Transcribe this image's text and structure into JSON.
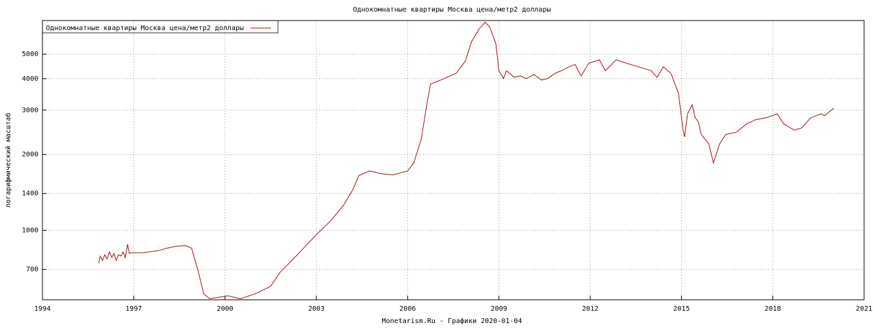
{
  "chart_data": {
    "type": "line",
    "title": "Однокомнатные квартиры Москва цена/метр2 доллары",
    "y_label": "логарифмический масштаб",
    "footer": "Monetarism.Ru - Графики  2020-01-04",
    "x": [
      1995.85,
      1995.9,
      1995.97,
      1996.05,
      1996.12,
      1996.2,
      1996.28,
      1996.35,
      1996.42,
      1996.5,
      1996.58,
      1996.65,
      1996.72,
      1996.8,
      1996.85,
      1996.9,
      1997.3,
      1997.8,
      1998.1,
      1998.4,
      1998.7,
      1998.9,
      1999.1,
      1999.3,
      1999.5,
      1999.9,
      2000.1,
      2000.5,
      2001.0,
      2001.5,
      2001.8,
      2002.2,
      2002.5,
      2003.0,
      2003.5,
      2003.9,
      2004.2,
      2004.4,
      2004.75,
      2005.1,
      2005.5,
      2006.0,
      2006.2,
      2006.45,
      2006.6,
      2006.75,
      2007.2,
      2007.6,
      2007.9,
      2008.1,
      2008.35,
      2008.55,
      2008.7,
      2008.9,
      2009.0,
      2009.15,
      2009.25,
      2009.5,
      2009.7,
      2009.9,
      2010.15,
      2010.4,
      2010.6,
      2010.85,
      2011.05,
      2011.3,
      2011.5,
      2011.7,
      2011.95,
      2012.3,
      2012.5,
      2012.85,
      2013.2,
      2013.6,
      2014.0,
      2014.2,
      2014.4,
      2014.65,
      2014.9,
      2015.05,
      2015.1,
      2015.2,
      2015.35,
      2015.45,
      2015.55,
      2015.65,
      2015.9,
      2016.05,
      2016.25,
      2016.45,
      2016.8,
      2017.15,
      2017.45,
      2017.8,
      2018.15,
      2018.35,
      2018.7,
      2018.95,
      2019.25,
      2019.6,
      2019.7,
      2020.0
    ],
    "series": [
      {
        "name": "Однокомнатные квартиры Москва цена/метр2 доллары",
        "color": "#a01010",
        "values": [
          740,
          790,
          760,
          800,
          770,
          820,
          780,
          810,
          760,
          800,
          790,
          820,
          780,
          880,
          810,
          815,
          815,
          830,
          850,
          865,
          870,
          850,
          700,
          560,
          535,
          545,
          550,
          535,
          560,
          600,
          680,
          760,
          830,
          960,
          1100,
          1260,
          1450,
          1650,
          1720,
          1680,
          1660,
          1720,
          1850,
          2300,
          3000,
          3800,
          4000,
          4200,
          4700,
          5600,
          6300,
          6700,
          6400,
          5500,
          4300,
          4000,
          4300,
          4050,
          4100,
          4000,
          4150,
          3950,
          4000,
          4200,
          4300,
          4450,
          4550,
          4100,
          4600,
          4750,
          4300,
          4750,
          4600,
          4450,
          4300,
          4050,
          4450,
          4200,
          3500,
          2500,
          2350,
          2900,
          3150,
          2800,
          2700,
          2400,
          2200,
          1850,
          2200,
          2400,
          2450,
          2650,
          2750,
          2800,
          2900,
          2650,
          2500,
          2550,
          2800,
          2900,
          2850,
          3050
        ]
      }
    ],
    "xlim": [
      1994,
      2021
    ],
    "xticks": [
      1994,
      1997,
      2000,
      2003,
      2006,
      2009,
      2012,
      2015,
      2018,
      2021
    ],
    "ylim": [
      530,
      6800
    ],
    "yticks": [
      700,
      1000,
      1400,
      2000,
      3000,
      4000,
      5000
    ],
    "ylog": true,
    "grid": true,
    "legend": "upper left"
  }
}
